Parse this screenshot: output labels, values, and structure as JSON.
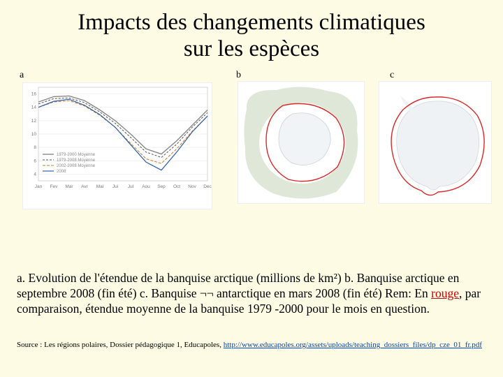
{
  "title_line1": "Impacts des changements climatiques",
  "title_line2": "sur les espèces",
  "labels": {
    "a": "a",
    "b": "b",
    "c": "c"
  },
  "caption": {
    "text_before_rouge": "a. Evolution de l'étendue de la banquise arctique (millions de km²) b. Banquise arctique en septembre 2008 (fin été) c. Banquise ¬¬ antarctique en mars 2008 (fin été) Rem: En ",
    "rouge_word": "rouge",
    "text_after_rouge": ", par comparaison, étendue moyenne de la banquise 1979 -2000 pour le mois en question."
  },
  "source": {
    "prefix": "Source : Les régions polaires, Dossier pédagogique 1, Educapoles, ",
    "url": "http://www.educapoles.org/assets/uploads/teaching_dossiers_files/dp_cze_01_fr.pdf"
  },
  "chart_a": {
    "type": "line",
    "x_labels": [
      "Jan",
      "Fev",
      "Mar",
      "Avr",
      "Mai",
      "Jui",
      "Jul",
      "Aou",
      "Sep",
      "Oct",
      "Nov",
      "Dec"
    ],
    "y_ticks": [
      4,
      6,
      8,
      10,
      12,
      14,
      16
    ],
    "ylim": [
      3,
      17
    ],
    "series": [
      {
        "name": "1979-2000 Moyenne",
        "color": "#888888",
        "width": 1.4,
        "values": [
          14.8,
          15.6,
          15.7,
          15.0,
          13.6,
          12.0,
          10.0,
          7.8,
          7.0,
          9.0,
          11.3,
          13.6
        ]
      },
      {
        "name": "1979-2008 Moyenne",
        "color": "#555555",
        "width": 1.0,
        "dash": "3,2",
        "values": [
          14.5,
          15.3,
          15.4,
          14.7,
          13.3,
          11.6,
          9.5,
          7.3,
          6.5,
          8.5,
          11.0,
          13.2
        ]
      },
      {
        "name": "2002-2008 Moyenne",
        "color": "#d07a2a",
        "width": 1.0,
        "dash": "4,2",
        "values": [
          14.0,
          14.8,
          15.0,
          14.2,
          12.8,
          11.0,
          8.6,
          6.3,
          5.6,
          7.8,
          10.4,
          12.7
        ]
      },
      {
        "name": "2008",
        "color": "#2a5db0",
        "width": 1.2,
        "values": [
          14.0,
          14.9,
          15.2,
          14.3,
          12.9,
          11.0,
          8.4,
          5.8,
          4.6,
          7.3,
          10.3,
          12.7
        ]
      }
    ],
    "colors": {
      "background": "#ffffff",
      "grid": "#e5e5e5",
      "text": "#888888"
    }
  },
  "map_b": {
    "type": "map",
    "description": "Arctic sea ice Sept 2008",
    "colors": {
      "ocean": "#ffffff",
      "land": "#d9e3d2",
      "ice": "#f0f4f7",
      "mean_line": "#d62a2a"
    }
  },
  "map_c": {
    "type": "map",
    "description": "Antarctic sea ice Mar 2008",
    "colors": {
      "ocean": "#ffffff",
      "land": "#e8ece6",
      "ice": "#eef2f5",
      "mean_line": "#d62a2a"
    }
  }
}
